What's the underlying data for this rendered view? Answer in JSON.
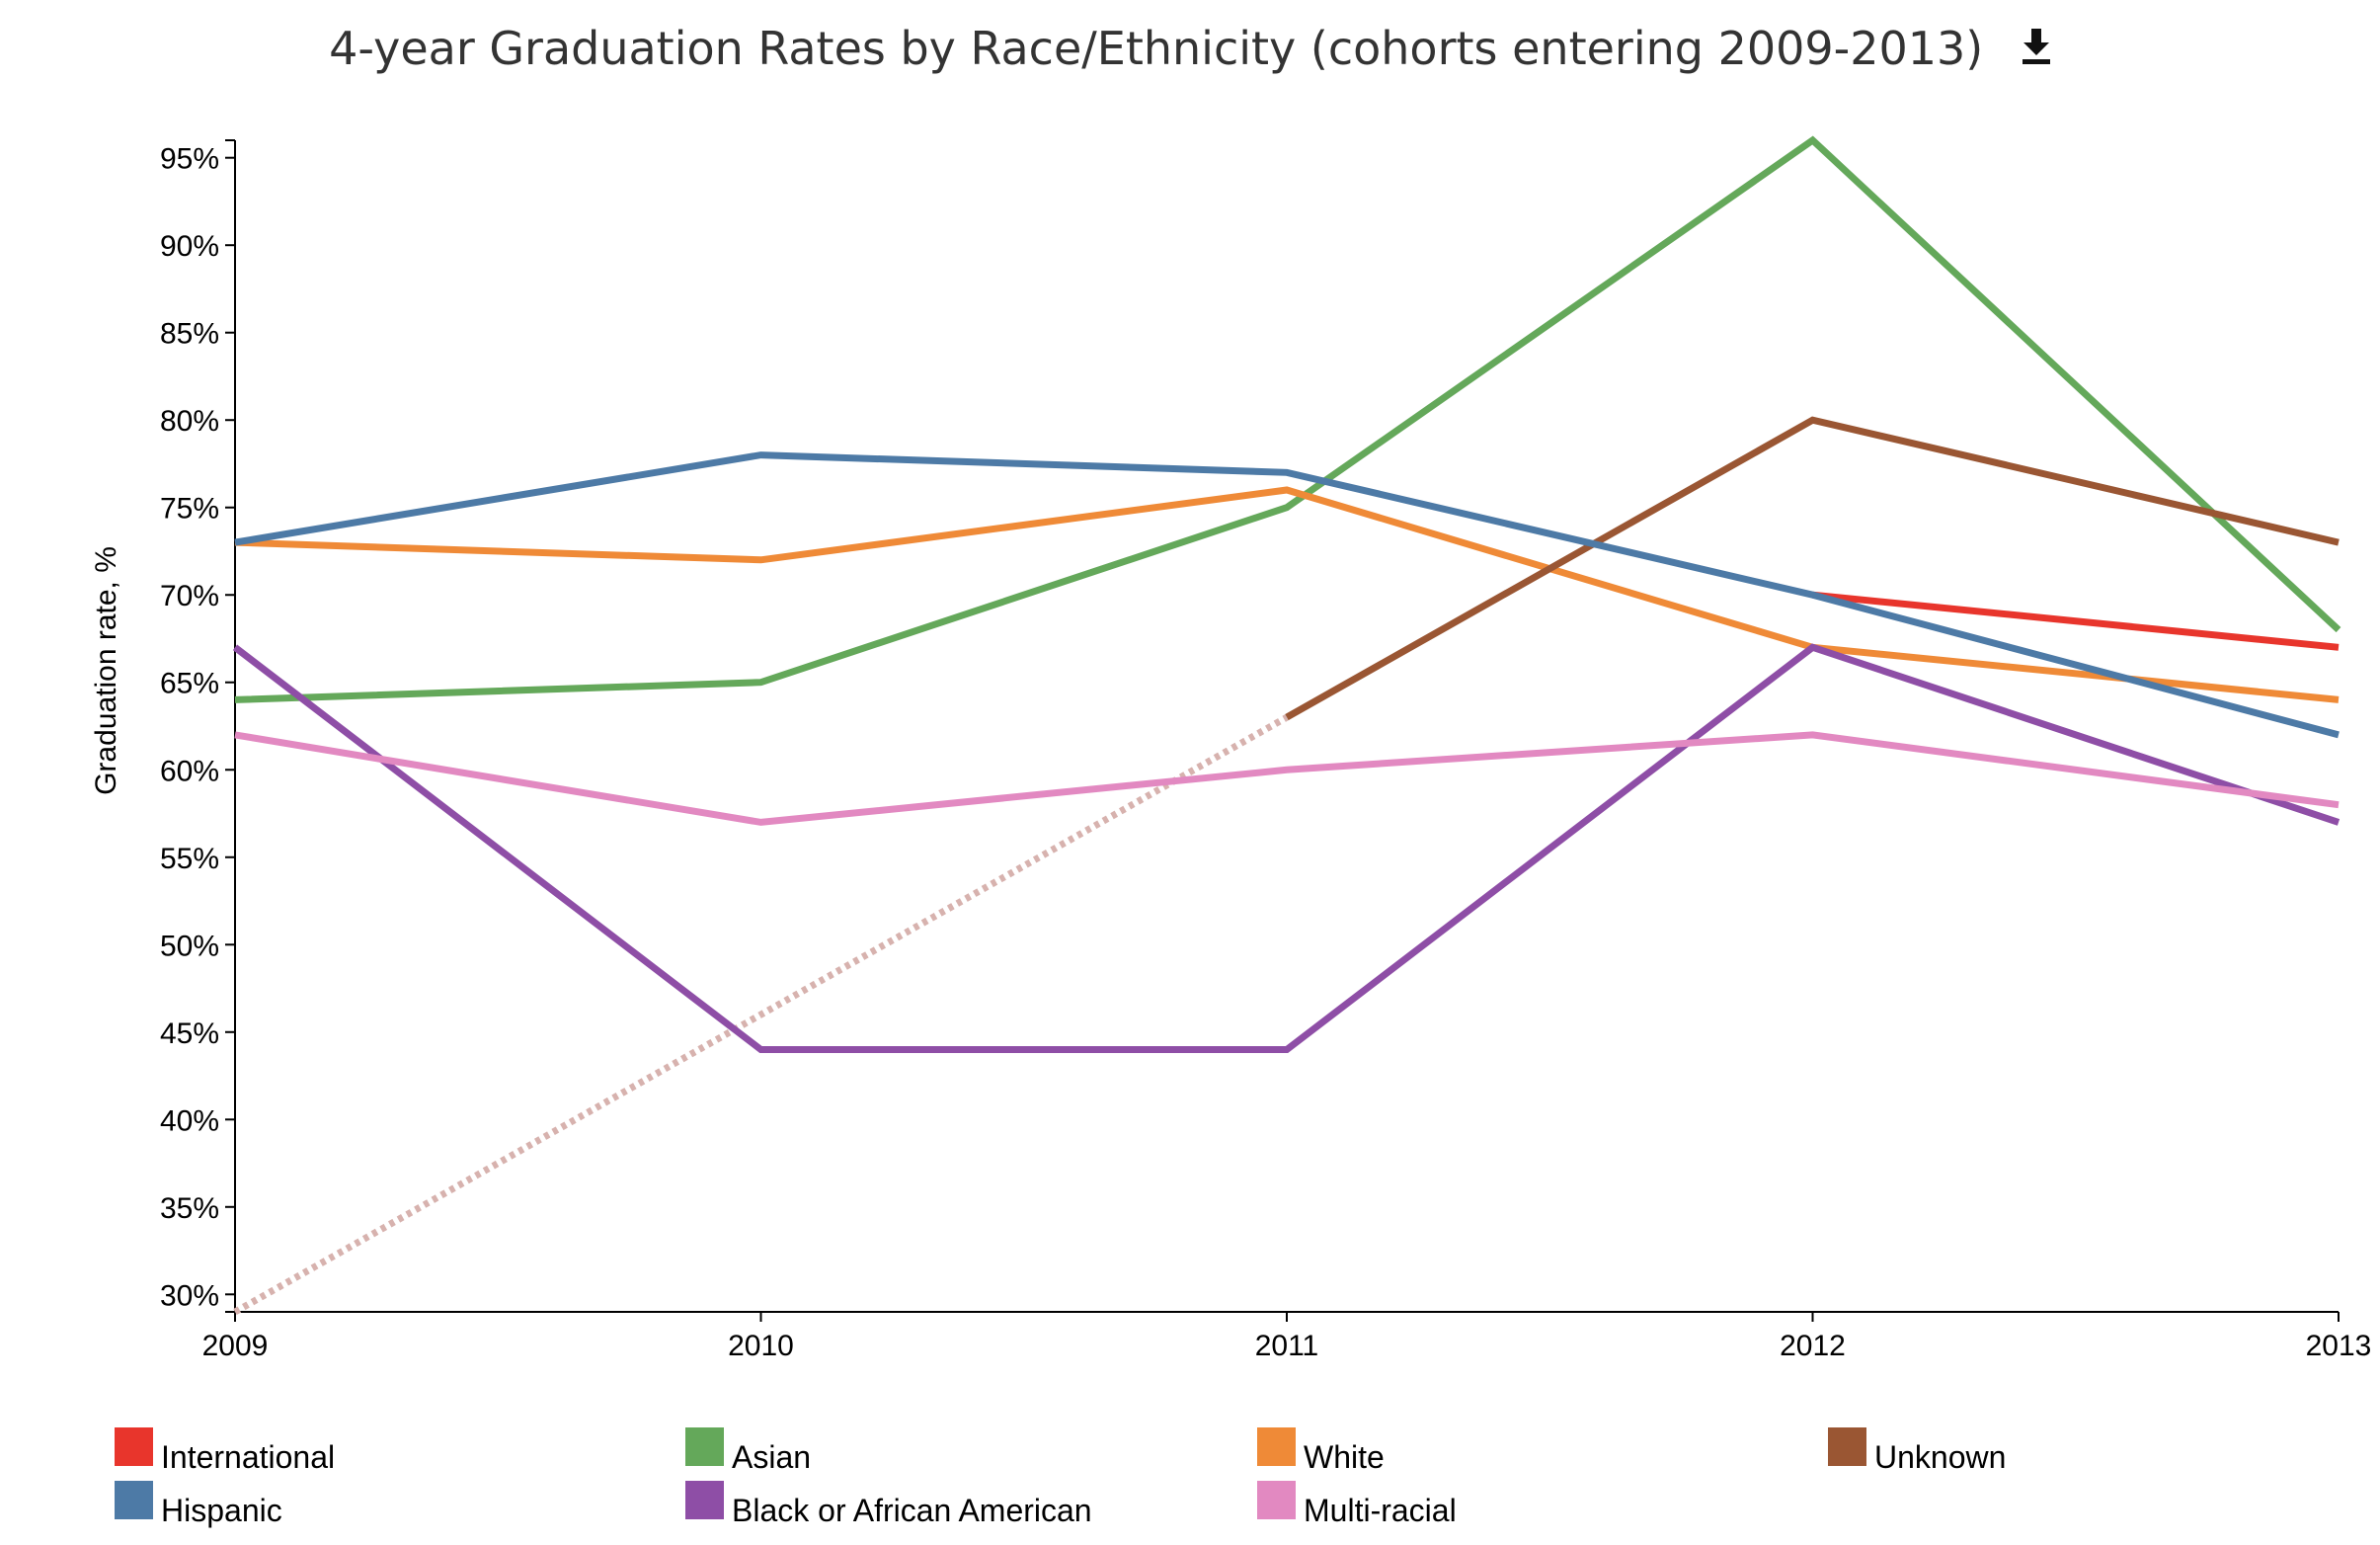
{
  "header": {
    "title": "4-year Graduation Rates by Race/Ethnicity (cohorts entering 2009-2013)",
    "download_icon": "download-icon"
  },
  "chart_data": {
    "type": "line",
    "title": "4-year Graduation Rates by Race/Ethnicity (cohorts entering 2009-2013)",
    "xlabel": "",
    "ylabel": "Graduation rate, %",
    "x": [
      "2009",
      "2010",
      "2011",
      "2012",
      "2013"
    ],
    "xlim": [
      2009,
      2013
    ],
    "ylim": [
      29,
      96
    ],
    "y_ticks": [
      "30%",
      "35%",
      "40%",
      "45%",
      "50%",
      "55%",
      "60%",
      "65%",
      "70%",
      "75%",
      "80%",
      "85%",
      "90%",
      "95%"
    ],
    "grid": false,
    "legend_position": "bottom",
    "series": [
      {
        "name": "International",
        "color": "#e8352c",
        "values": [
          null,
          null,
          null,
          70,
          67
        ]
      },
      {
        "name": "Asian",
        "color": "#64a85a",
        "values": [
          64,
          65,
          75,
          96,
          68
        ]
      },
      {
        "name": "White",
        "color": "#ef8a37",
        "values": [
          73,
          72,
          76,
          67,
          64
        ]
      },
      {
        "name": "Unknown",
        "color": "#9a5633",
        "values": [
          29,
          null,
          63,
          80,
          73
        ],
        "dotted_segment": {
          "from": 2009,
          "to": 2011,
          "color": "#d7b2ae"
        }
      },
      {
        "name": "Hispanic",
        "color": "#4d7aa6",
        "values": [
          73,
          78,
          77,
          70,
          62
        ]
      },
      {
        "name": "Black or African American",
        "color": "#8e4ea6",
        "values": [
          67,
          44,
          44,
          67,
          57
        ]
      },
      {
        "name": "Multi-racial",
        "color": "#e289c1",
        "values": [
          62,
          57,
          60,
          62,
          58
        ]
      }
    ]
  }
}
